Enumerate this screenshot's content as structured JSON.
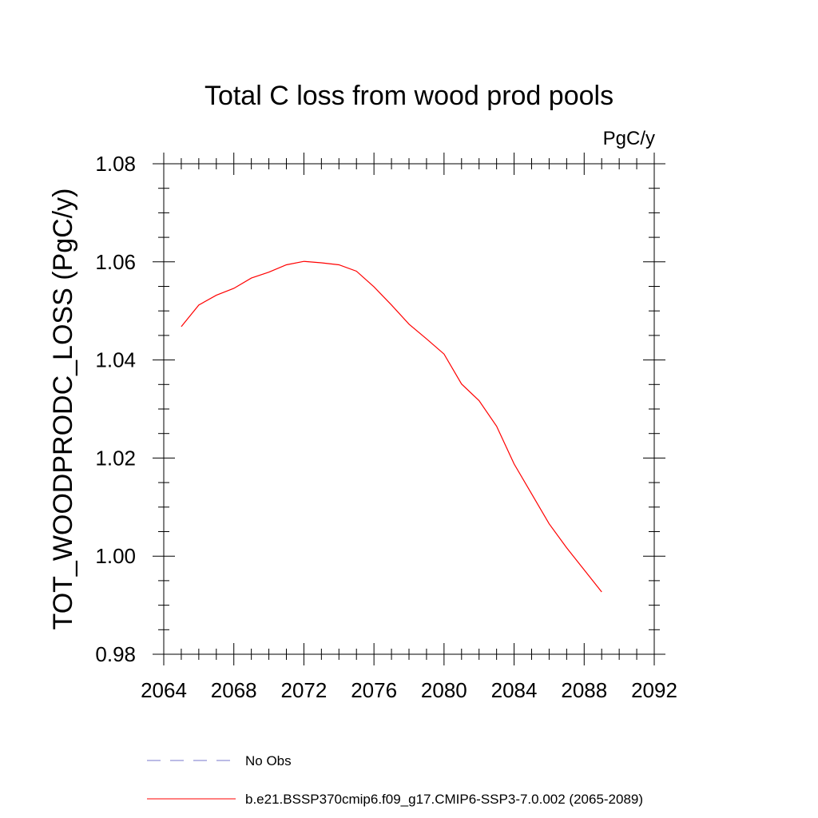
{
  "chart_data": {
    "type": "line",
    "title": "Total C loss from wood prod pools",
    "units_label": "PgC/y",
    "ylabel": "TOT_WOODPRODC_LOSS  (PgC/y)",
    "xlabel": "",
    "xlim": [
      2064,
      2092
    ],
    "ylim": [
      0.98,
      1.08
    ],
    "x_ticks": [
      2064,
      2068,
      2072,
      2076,
      2080,
      2084,
      2088,
      2092
    ],
    "x_tick_labels": [
      "2064",
      "2068",
      "2072",
      "2076",
      "2080",
      "2084",
      "2088",
      "2092"
    ],
    "y_ticks": [
      0.98,
      1.0,
      1.02,
      1.04,
      1.06,
      1.08
    ],
    "y_tick_labels": [
      "0.98",
      "1.00",
      "1.02",
      "1.04",
      "1.06",
      "1.08"
    ],
    "grid": false,
    "legend_position": "bottom",
    "series": [
      {
        "name": "b.e21.BSSP370cmip6.f09_g17.CMIP6-SSP3-7.0.002 (2065-2089)",
        "color": "#ff0000",
        "style": "solid",
        "x": [
          2065,
          2066,
          2067,
          2068,
          2069,
          2070,
          2071,
          2072,
          2073,
          2074,
          2075,
          2076,
          2077,
          2078,
          2079,
          2080,
          2081,
          2082,
          2083,
          2084,
          2085,
          2086,
          2087,
          2088,
          2089
        ],
        "y": [
          1.0468,
          1.0512,
          1.0532,
          1.0546,
          1.0567,
          1.0579,
          1.0594,
          1.0601,
          1.0598,
          1.0594,
          1.0581,
          1.0549,
          1.0512,
          1.0473,
          1.0443,
          1.0412,
          1.0351,
          1.0317,
          1.0265,
          1.0188,
          1.0127,
          1.0066,
          1.0017,
          0.9972,
          0.9927
        ]
      },
      {
        "name": "No Obs",
        "color": "#7777cc",
        "style": "dashed",
        "x": [],
        "y": []
      }
    ]
  }
}
